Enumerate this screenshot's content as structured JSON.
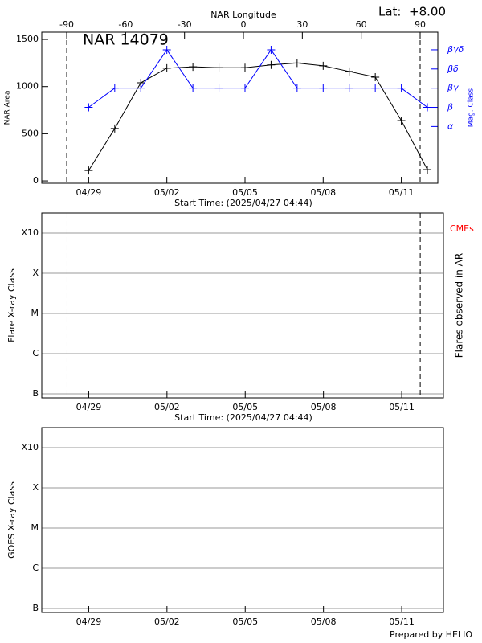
{
  "chart_data": [
    {
      "type": "line",
      "title": "NAR 14079",
      "annotation": "Lat:  +8.00",
      "xlabel": "Start Time: (2025/04/27 04:44)",
      "x2label": "NAR Longitude",
      "ylabel": "NAR Area",
      "y2label": "Mag. Class",
      "x": [
        1.8,
        2.8,
        3.8,
        4.8,
        5.8,
        6.8,
        7.8,
        8.8,
        9.8,
        10.8,
        11.8,
        12.8,
        13.8,
        14.8
      ],
      "xlim": [
        0,
        15.2
      ],
      "xticks": [
        {
          "value": 1.8,
          "label": "04/29"
        },
        {
          "value": 4.8,
          "label": "05/02"
        },
        {
          "value": 7.8,
          "label": "05/05"
        },
        {
          "value": 10.8,
          "label": "05/08"
        },
        {
          "value": 13.8,
          "label": "05/11"
        }
      ],
      "x2lim": [
        -102.7,
        99
      ],
      "x2ticks": [
        -90,
        -60,
        -30,
        0,
        30,
        60,
        90
      ],
      "vlines": [
        -90,
        90
      ],
      "ylim": [
        -25,
        1577
      ],
      "yticks": [
        0,
        500,
        1000,
        1500
      ],
      "y2lim": [
        -1.96,
        5.92
      ],
      "y2color": "#0000ff",
      "y2ticks": [
        {
          "value": 1,
          "label": "α"
        },
        {
          "value": 2,
          "label": "β"
        },
        {
          "value": 3,
          "label": "βγ"
        },
        {
          "value": 4,
          "label": "βδ"
        },
        {
          "value": 5,
          "label": "βγδ"
        }
      ],
      "series": [
        {
          "color": "#000000",
          "values": [
            110,
            555,
            1040,
            1195,
            1210,
            1200,
            1200,
            1230,
            1250,
            1220,
            1160,
            1100,
            640,
            120
          ]
        },
        {
          "color": "#0000ff",
          "axis": "y2",
          "values": [
            2,
            3,
            3,
            5,
            3,
            3,
            3,
            5,
            3,
            3,
            3,
            3,
            3,
            2
          ]
        }
      ]
    },
    {
      "type": "scatter",
      "xlabel": "Start Time: (2025/04/27 04:44)",
      "ylabel": "Flare X-ray Class",
      "y2label": "Flares observed in AR",
      "annotation": "CMEs",
      "annotation_color": "#ff0000",
      "xlim": [
        0,
        15.4
      ],
      "xticks": [
        {
          "value": 1.8,
          "label": "04/29"
        },
        {
          "value": 4.8,
          "label": "05/02"
        },
        {
          "value": 7.8,
          "label": "05/05"
        },
        {
          "value": 10.8,
          "label": "05/08"
        },
        {
          "value": 13.8,
          "label": "05/11"
        }
      ],
      "vlines": [
        0.97,
        14.51
      ],
      "ylim": [
        -7.1,
        -2.5
      ],
      "yticks": [
        {
          "value": -7,
          "label": "B"
        },
        {
          "value": -6,
          "label": "C"
        },
        {
          "value": -5,
          "label": "M"
        },
        {
          "value": -4,
          "label": "X"
        },
        {
          "value": -3,
          "label": "X10"
        }
      ],
      "grid": true,
      "series": []
    },
    {
      "type": "scatter",
      "ylabel": "GOES X-ray Class",
      "xlim": [
        0,
        15.4
      ],
      "xticks": [
        {
          "value": 1.8,
          "label": "04/29"
        },
        {
          "value": 4.8,
          "label": "05/02"
        },
        {
          "value": 7.8,
          "label": "05/05"
        },
        {
          "value": 10.8,
          "label": "05/08"
        },
        {
          "value": 13.8,
          "label": "05/11"
        }
      ],
      "ylim": [
        -7.1,
        -2.5
      ],
      "yticks": [
        {
          "value": -7,
          "label": "B"
        },
        {
          "value": -6,
          "label": "C"
        },
        {
          "value": -5,
          "label": "M"
        },
        {
          "value": -4,
          "label": "X"
        },
        {
          "value": -3,
          "label": "X10"
        }
      ],
      "grid": true,
      "series": []
    }
  ],
  "footer": "Prepared by HELIO"
}
